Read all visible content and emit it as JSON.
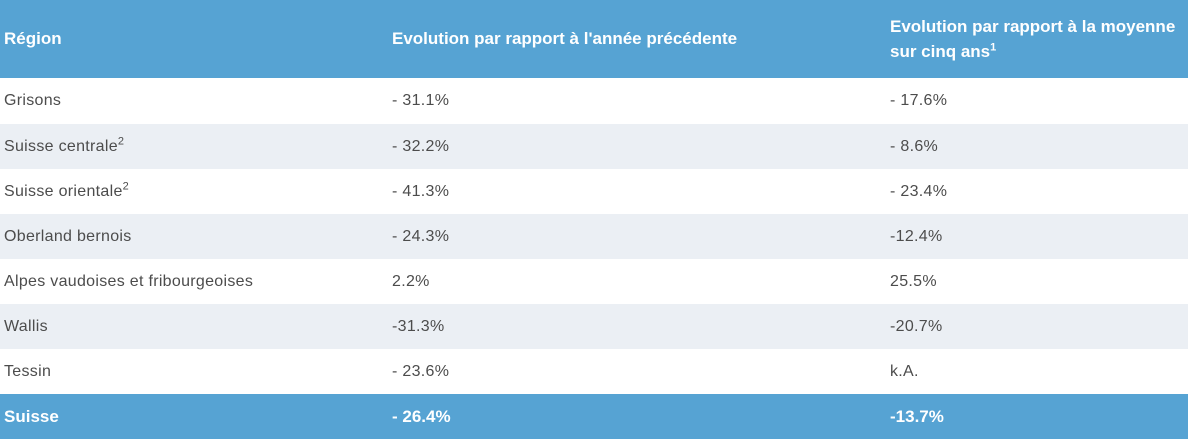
{
  "header": {
    "col_region": "Région",
    "col_prev_year": "Evolution par rapport à l'année précédente",
    "col_five_year": "Evolution par rapport à la moyenne sur cinq ans",
    "col_five_year_sup": "1"
  },
  "rows": [
    {
      "region": "Grisons",
      "sup": "",
      "prev": "- 31.1%",
      "five": "- 17.6%"
    },
    {
      "region": "Suisse centrale",
      "sup": "2",
      "prev": "- 32.2%",
      "five": "- 8.6%"
    },
    {
      "region": "Suisse orientale",
      "sup": "2",
      "prev": "- 41.3%",
      "five": "- 23.4%"
    },
    {
      "region": "Oberland bernois",
      "sup": "",
      "prev": "- 24.3%",
      "five": "-12.4%"
    },
    {
      "region": "Alpes vaudoises et fribourgeoises",
      "sup": "",
      "prev": "2.2%",
      "five": "25.5%"
    },
    {
      "region": "Wallis",
      "sup": "",
      "prev": "-31.3%",
      "five": "-20.7%"
    },
    {
      "region": "Tessin",
      "sup": "",
      "prev": "- 23.6%",
      "five": "k.A."
    }
  ],
  "total": {
    "region": "Suisse",
    "prev": "- 26.4%",
    "five": "-13.7%"
  },
  "colors": {
    "header_bg": "#56a3d3",
    "stripe_bg": "#ebeff4",
    "text": "#4c4c4c"
  }
}
